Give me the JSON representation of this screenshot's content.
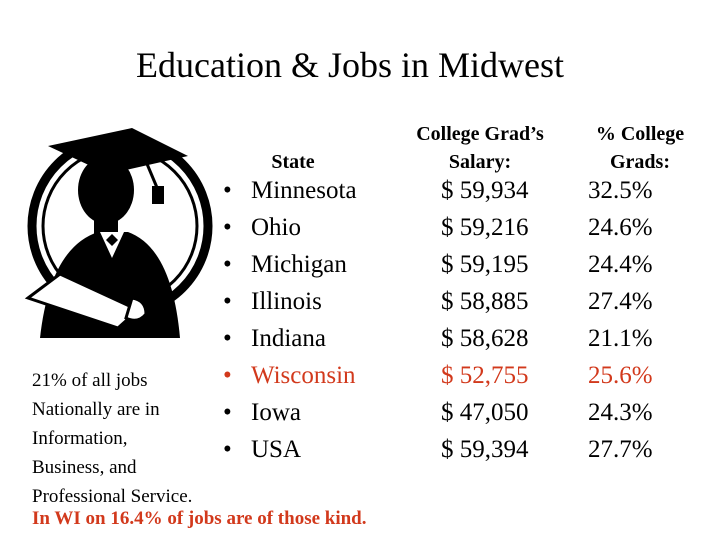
{
  "title": "Education & Jobs in Midwest",
  "headers": {
    "state": "State",
    "salary_line1": "College Grad’s",
    "salary_line2": "Salary:",
    "pct_line1": "% College",
    "pct_line2": "Grads:"
  },
  "rows": [
    {
      "bullet": "•",
      "state": "Minnesota",
      "salary": "$ 59,934",
      "pct": "32.5%"
    },
    {
      "bullet": "•",
      "state": "Ohio",
      "salary": "$ 59,216",
      "pct": "24.6%"
    },
    {
      "bullet": "•",
      "state": "Michigan",
      "salary": "$ 59,195",
      "pct": "24.4%"
    },
    {
      "bullet": "•",
      "state": "Illinois",
      "salary": "$ 58,885",
      "pct": "27.4%"
    },
    {
      "bullet": "•",
      "state": "Indiana",
      "salary": "$ 58,628",
      "pct": "21.1%"
    },
    {
      "bullet": "•",
      "state": "Wisconsin",
      "salary": "$ 52,755",
      "pct": "25.6%"
    },
    {
      "bullet": "•",
      "state": "Iowa",
      "salary": "$ 47,050",
      "pct": "24.3%"
    },
    {
      "bullet": "•",
      "state": "USA",
      "salary": "$ 59,394",
      "pct": "27.7%"
    }
  ],
  "note_lines": [
    "21% of all jobs",
    "Nationally are in",
    "Information,",
    "Business, and",
    "Professional Service."
  ],
  "wi_note": "In WI on 16.4% of jobs are of those kind.",
  "colors": {
    "highlight": "#d2391c",
    "text": "#000000"
  }
}
